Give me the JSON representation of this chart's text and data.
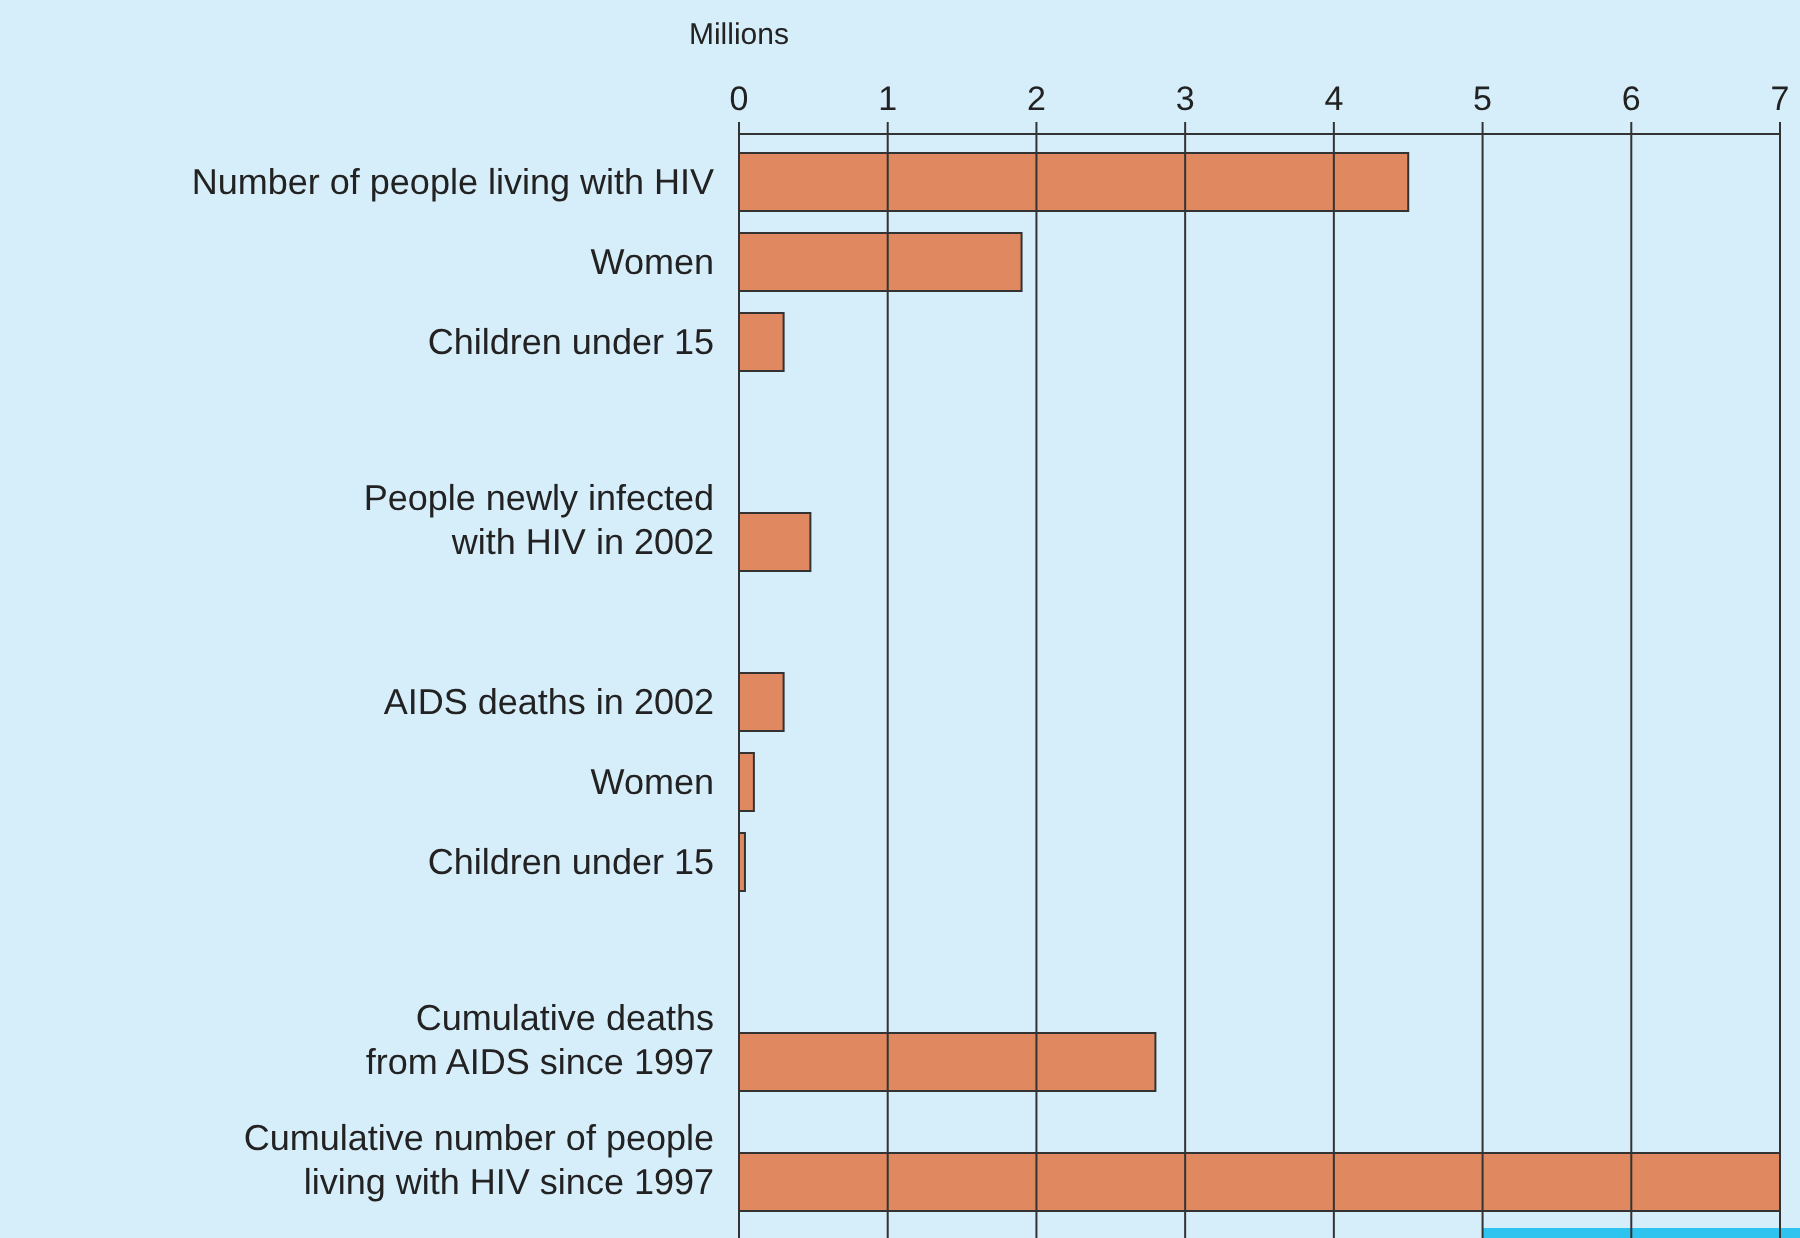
{
  "chart_data": {
    "type": "bar",
    "orientation": "horizontal",
    "xlabel": "Millions",
    "categories": [
      "Number of people living with HIV",
      null,
      "Women",
      null,
      "Children under 15",
      null,
      null,
      null,
      null,
      "People newly infected\nwith HIV in 2002",
      null,
      null,
      null,
      "AIDS deaths in 2002",
      null,
      "Women",
      null,
      "Children under 15",
      null,
      null,
      null,
      null,
      "Cumulative deaths\nfrom AIDS since 1997",
      null,
      null,
      "Cumulative number of people\nliving with HIV since 1997"
    ],
    "values": [
      4.5,
      null,
      1.9,
      null,
      0.3,
      null,
      null,
      null,
      null,
      0.48,
      null,
      null,
      null,
      0.3,
      null,
      0.1,
      null,
      0.04,
      null,
      null,
      null,
      null,
      2.8,
      null,
      null,
      7
    ],
    "color": "#e08961",
    "xlim": [
      0,
      7
    ],
    "xticks": [
      0,
      1,
      2,
      3,
      4,
      5,
      6,
      7
    ],
    "grid": "x"
  }
}
